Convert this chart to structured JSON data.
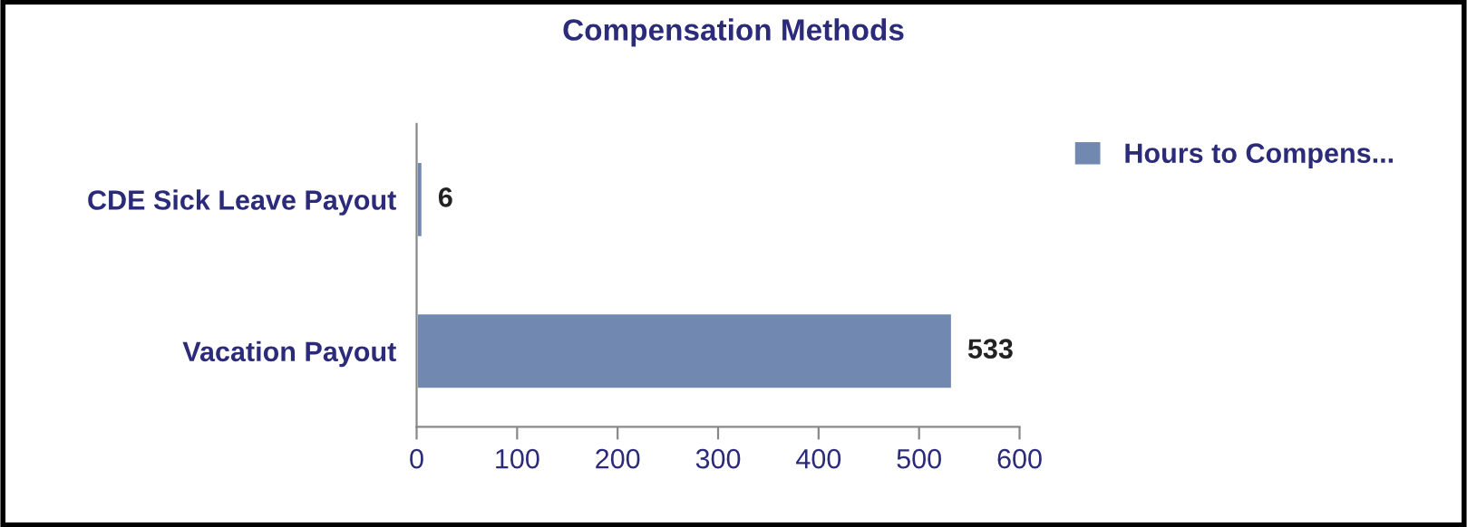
{
  "chart_data": {
    "type": "bar",
    "orientation": "horizontal",
    "title": "Compensation Methods",
    "categories": [
      "CDE Sick Leave Payout",
      "Vacation Payout"
    ],
    "series": [
      {
        "name": "Hours to Compens...",
        "color": "#7189b0",
        "values": [
          6,
          533
        ]
      }
    ],
    "xlim": [
      0,
      600
    ],
    "xticks": [
      0,
      100,
      200,
      300,
      400,
      500,
      600
    ],
    "data_labels": true,
    "legend": "top right",
    "grid": false
  }
}
